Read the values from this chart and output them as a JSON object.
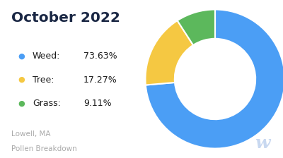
{
  "title": "October 2022",
  "subtitle_line1": "Lowell, MA",
  "subtitle_line2": "Pollen Breakdown",
  "labels": [
    "Weed",
    "Tree",
    "Grass"
  ],
  "values": [
    73.63,
    17.27,
    9.11
  ],
  "colors": [
    "#4B9EF5",
    "#F5C842",
    "#5CB85C"
  ],
  "background_color": "#ffffff",
  "title_color": "#1a2744",
  "legend_label_color": "#1a1a1a",
  "subtitle_color": "#aaaaaa",
  "watermark_color": "#c8d8f0",
  "donut_startangle": 90
}
